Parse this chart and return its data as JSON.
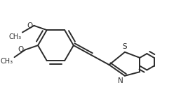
{
  "background_color": "#ffffff",
  "line_color": "#2a2a2a",
  "line_width": 1.4,
  "font_size_S": 7.5,
  "font_size_N": 7.5,
  "font_size_O": 7.5,
  "font_size_me": 7.0,
  "S_label": "S",
  "N_label": "N",
  "figsize": [
    2.68,
    1.45
  ],
  "dpi": 100,
  "xlim": [
    0.0,
    10.0
  ],
  "ylim": [
    0.0,
    5.42
  ]
}
